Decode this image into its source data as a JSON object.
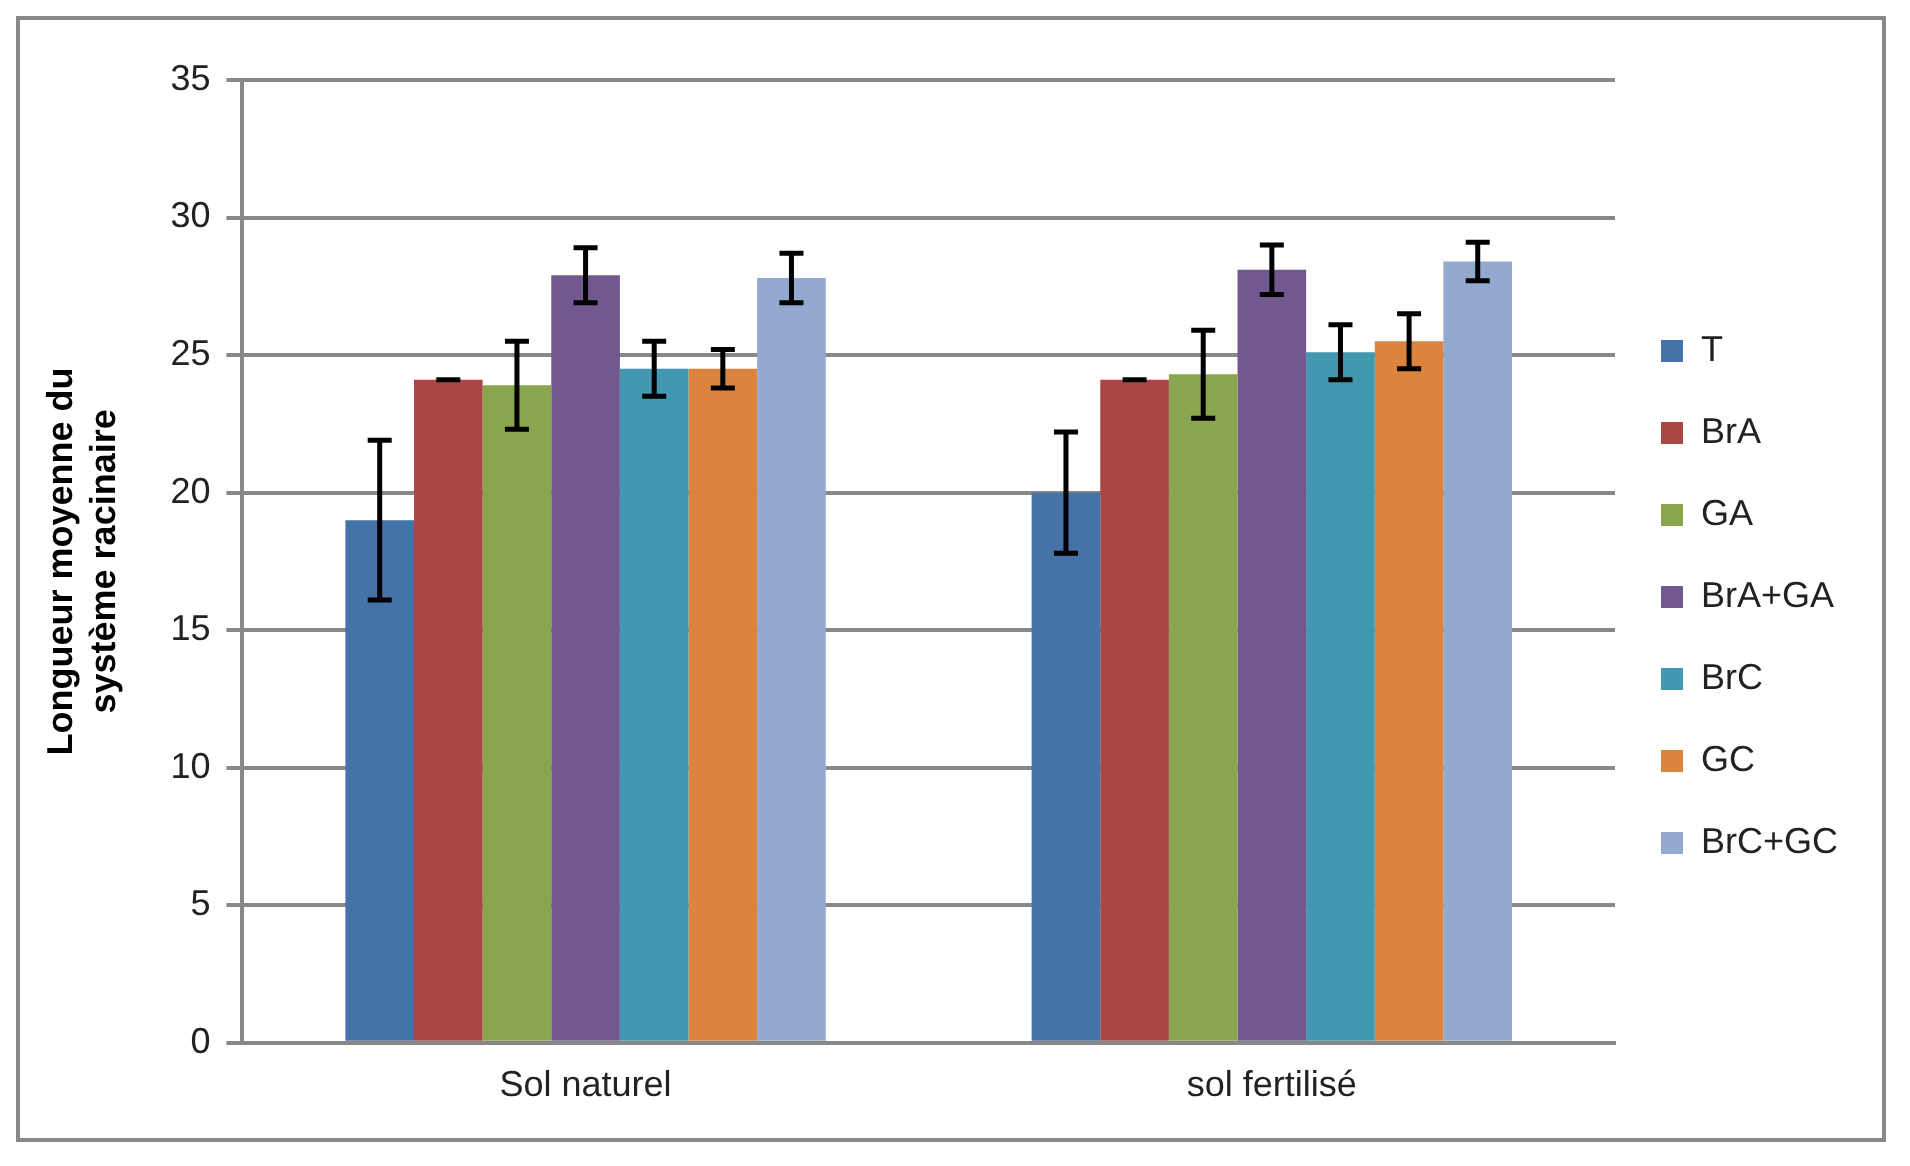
{
  "chart_data": {
    "type": "bar",
    "ylabel": "Longueur moyenne du système racinaire",
    "categories": [
      "Sol naturel",
      "sol fertilisé"
    ],
    "ylim": [
      0,
      35
    ],
    "yticks": [
      0,
      5,
      10,
      15,
      20,
      25,
      30,
      35
    ],
    "grid": "y",
    "legend": "right",
    "series": [
      {
        "name": "T",
        "color": "#4572a7",
        "values": [
          19,
          20
        ],
        "errors": [
          2.9,
          2.2
        ]
      },
      {
        "name": "BrA",
        "color": "#aa4643",
        "values": [
          24.1,
          24.1
        ],
        "errors": [
          0,
          0
        ]
      },
      {
        "name": "GA",
        "color": "#89a54e",
        "values": [
          23.9,
          24.3
        ],
        "errors": [
          1.6,
          1.6
        ]
      },
      {
        "name": "BrA+GA",
        "color": "#71588f",
        "values": [
          27.9,
          28.1
        ],
        "errors": [
          1.0,
          0.9
        ]
      },
      {
        "name": "BrC",
        "color": "#4198af",
        "values": [
          24.5,
          25.1
        ],
        "errors": [
          1.0,
          1.0
        ]
      },
      {
        "name": "GC",
        "color": "#db843d",
        "values": [
          24.5,
          25.5
        ],
        "errors": [
          0.7,
          1.0
        ]
      },
      {
        "name": "BrC+GC",
        "color": "#93a9cf",
        "values": [
          27.8,
          28.4
        ],
        "errors": [
          0.9,
          0.7
        ]
      }
    ]
  }
}
